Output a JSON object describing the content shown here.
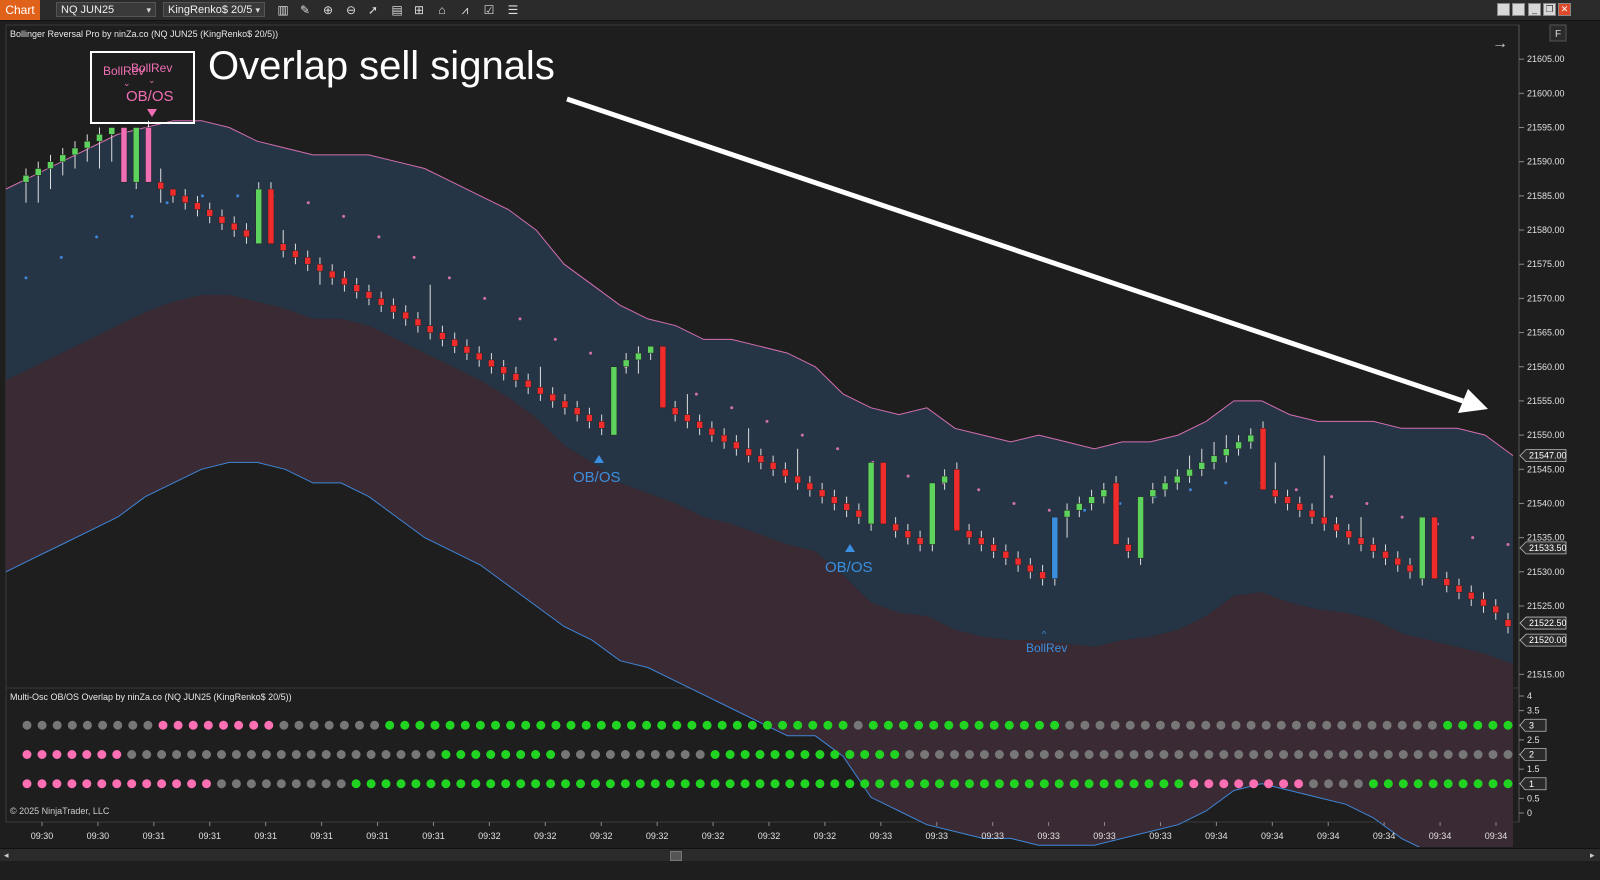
{
  "toolbar": {
    "chart_tab": "Chart",
    "instrument": "NQ JUN25",
    "bar_type": "KingRenko$ 20/5",
    "icons": [
      "bars-icon",
      "draw-icon",
      "zoom-in-icon",
      "zoom-out-icon",
      "pointer-icon",
      "data-box-icon",
      "templates-icon",
      "strategies-icon",
      "indicators-icon",
      "properties-icon",
      "list-icon"
    ]
  },
  "price_panel": {
    "title": "Bollinger Reversal Pro by ninZa.co (NQ JUN25 (KingRenko$ 20/5))",
    "annotation": "Overlap sell signals",
    "signal_labels": {
      "bollrev_a": "BollRev",
      "bollrev_b": "BollRev",
      "obos_top": "OB/OS",
      "obos_1": "OB/OS",
      "obos_2": "OB/OS",
      "bollrev_bottom": "BollRev"
    },
    "axis_ticks": [
      "21605.00",
      "21600.00",
      "21595.00",
      "21590.00",
      "21585.00",
      "21580.00",
      "21575.00",
      "21570.00",
      "21565.00",
      "21560.00",
      "21555.00",
      "21550.00",
      "21545.00",
      "21540.00",
      "21535.00",
      "21530.00",
      "21525.00",
      "21520.00",
      "21515.00"
    ],
    "price_tags": [
      {
        "value": "21547.00",
        "color": "#2b2b2b"
      },
      {
        "value": "21533.50",
        "color": "#2b2b2b"
      },
      {
        "value": "21522.50",
        "color": "#2b2b2b"
      },
      {
        "value": "21520.00",
        "color": "#2b2b2b"
      }
    ],
    "panel_button": "F"
  },
  "oscillator_panel": {
    "title": "Multi-Osc OB/OS Overlap by ninZa.co (NQ JUN25 (KingRenko$ 20/5))",
    "axis_ticks": [
      "4",
      "3.5",
      "3",
      "2.5",
      "2",
      "1.5",
      "1",
      "0.5",
      "0"
    ],
    "row_tags": [
      "3",
      "2",
      "1"
    ]
  },
  "copyright": "© 2025 NinjaTrader, LLC",
  "time_axis": [
    "09:30",
    "09:30",
    "09:31",
    "09:31",
    "09:31",
    "09:31",
    "09:31",
    "09:31",
    "09:32",
    "09:32",
    "09:32",
    "09:32",
    "09:32",
    "09:32",
    "09:32",
    "09:33",
    "09:33",
    "09:33",
    "09:33",
    "09:33",
    "09:33",
    "09:34",
    "09:34",
    "09:34",
    "09:34",
    "09:34",
    "09:34"
  ],
  "colors": {
    "background": "#1e1e1e",
    "upper_band_fill": "#263545",
    "lower_band_fill": "#3a2a33",
    "upper_line": "#d36fb0",
    "lower_line": "#3f86d8",
    "bull": "#5dd35d",
    "bear": "#ef2b2b",
    "signal_pink": "#f06fb4",
    "signal_blue": "#3b8fe0",
    "dot_green": "#22d422",
    "dot_gray": "#777777",
    "dot_pink": "#ff6fb4"
  },
  "chart_data": {
    "type": "candlestick",
    "ylim": [
      21513,
      21610
    ],
    "bars": [
      {
        "o": 21587,
        "c": 21588,
        "h": 21589,
        "l": 21584,
        "k": "u"
      },
      {
        "o": 21588,
        "c": 21589,
        "h": 21590,
        "l": 21584,
        "k": "u"
      },
      {
        "o": 21589,
        "c": 21590,
        "h": 21591,
        "l": 21586,
        "k": "u"
      },
      {
        "o": 21590,
        "c": 21591,
        "h": 21592,
        "l": 21588,
        "k": "u"
      },
      {
        "o": 21591,
        "c": 21592,
        "h": 21593,
        "l": 21589,
        "k": "u"
      },
      {
        "o": 21592,
        "c": 21593,
        "h": 21594,
        "l": 21590,
        "k": "u"
      },
      {
        "o": 21593,
        "c": 21594,
        "h": 21595,
        "l": 21589,
        "k": "u"
      },
      {
        "o": 21594,
        "c": 21595,
        "h": 21595,
        "l": 21590,
        "k": "u"
      },
      {
        "o": 21595,
        "c": 21587,
        "h": 21595,
        "l": 21587,
        "k": "sp"
      },
      {
        "o": 21587,
        "c": 21595,
        "h": 21595,
        "l": 21586,
        "k": "u"
      },
      {
        "o": 21595,
        "c": 21587,
        "h": 21596,
        "l": 21587,
        "k": "sp"
      },
      {
        "o": 21587,
        "c": 21586,
        "h": 21589,
        "l": 21584,
        "k": "d"
      },
      {
        "o": 21586,
        "c": 21585,
        "h": 21586,
        "l": 21584,
        "k": "d"
      },
      {
        "o": 21585,
        "c": 21584,
        "h": 21586,
        "l": 21583,
        "k": "d"
      },
      {
        "o": 21584,
        "c": 21583,
        "h": 21585,
        "l": 21582,
        "k": "d"
      },
      {
        "o": 21583,
        "c": 21582,
        "h": 21584,
        "l": 21581,
        "k": "d"
      },
      {
        "o": 21582,
        "c": 21581,
        "h": 21583,
        "l": 21580,
        "k": "d"
      },
      {
        "o": 21581,
        "c": 21580,
        "h": 21582,
        "l": 21579,
        "k": "d"
      },
      {
        "o": 21580,
        "c": 21579,
        "h": 21581,
        "l": 21578,
        "k": "d"
      },
      {
        "o": 21578,
        "c": 21586,
        "h": 21587,
        "l": 21578,
        "k": "u"
      },
      {
        "o": 21586,
        "c": 21578,
        "h": 21587,
        "l": 21578,
        "k": "d"
      },
      {
        "o": 21578,
        "c": 21577,
        "h": 21580,
        "l": 21576,
        "k": "d"
      },
      {
        "o": 21577,
        "c": 21576,
        "h": 21578,
        "l": 21575,
        "k": "d"
      },
      {
        "o": 21576,
        "c": 21575,
        "h": 21577,
        "l": 21574,
        "k": "d"
      },
      {
        "o": 21575,
        "c": 21574,
        "h": 21576,
        "l": 21572,
        "k": "d"
      },
      {
        "o": 21574,
        "c": 21573,
        "h": 21575,
        "l": 21572,
        "k": "d"
      },
      {
        "o": 21573,
        "c": 21572,
        "h": 21574,
        "l": 21571,
        "k": "d"
      },
      {
        "o": 21572,
        "c": 21571,
        "h": 21573,
        "l": 21570,
        "k": "d"
      },
      {
        "o": 21571,
        "c": 21570,
        "h": 21572,
        "l": 21569,
        "k": "d"
      },
      {
        "o": 21570,
        "c": 21569,
        "h": 21571,
        "l": 21568,
        "k": "d"
      },
      {
        "o": 21569,
        "c": 21568,
        "h": 21570,
        "l": 21567,
        "k": "d"
      },
      {
        "o": 21568,
        "c": 21567,
        "h": 21569,
        "l": 21566,
        "k": "d"
      },
      {
        "o": 21567,
        "c": 21566,
        "h": 21568,
        "l": 21565,
        "k": "d"
      },
      {
        "o": 21566,
        "c": 21565,
        "h": 21572,
        "l": 21564,
        "k": "d"
      },
      {
        "o": 21565,
        "c": 21564,
        "h": 21566,
        "l": 21563,
        "k": "d"
      },
      {
        "o": 21564,
        "c": 21563,
        "h": 21565,
        "l": 21562,
        "k": "d"
      },
      {
        "o": 21563,
        "c": 21562,
        "h": 21564,
        "l": 21561,
        "k": "d"
      },
      {
        "o": 21562,
        "c": 21561,
        "h": 21563,
        "l": 21560,
        "k": "d"
      },
      {
        "o": 21561,
        "c": 21560,
        "h": 21562,
        "l": 21559,
        "k": "d"
      },
      {
        "o": 21560,
        "c": 21559,
        "h": 21561,
        "l": 21558,
        "k": "d"
      },
      {
        "o": 21559,
        "c": 21558,
        "h": 21560,
        "l": 21557,
        "k": "d"
      },
      {
        "o": 21558,
        "c": 21557,
        "h": 21559,
        "l": 21556,
        "k": "d"
      },
      {
        "o": 21557,
        "c": 21556,
        "h": 21560,
        "l": 21555,
        "k": "d"
      },
      {
        "o": 21556,
        "c": 21555,
        "h": 21557,
        "l": 21554,
        "k": "d"
      },
      {
        "o": 21555,
        "c": 21554,
        "h": 21556,
        "l": 21553,
        "k": "d"
      },
      {
        "o": 21554,
        "c": 21553,
        "h": 21555,
        "l": 21552,
        "k": "d"
      },
      {
        "o": 21553,
        "c": 21552,
        "h": 21554,
        "l": 21551,
        "k": "d"
      },
      {
        "o": 21552,
        "c": 21551,
        "h": 21553,
        "l": 21550,
        "k": "d"
      },
      {
        "o": 21550,
        "c": 21560,
        "h": 21560,
        "l": 21550,
        "k": "u"
      },
      {
        "o": 21560,
        "c": 21561,
        "h": 21562,
        "l": 21559,
        "k": "u"
      },
      {
        "o": 21561,
        "c": 21562,
        "h": 21563,
        "l": 21559,
        "k": "u"
      },
      {
        "o": 21562,
        "c": 21563,
        "h": 21563,
        "l": 21561,
        "k": "u"
      },
      {
        "o": 21563,
        "c": 21554,
        "h": 21563,
        "l": 21554,
        "k": "d"
      },
      {
        "o": 21554,
        "c": 21553,
        "h": 21555,
        "l": 21552,
        "k": "d"
      },
      {
        "o": 21553,
        "c": 21552,
        "h": 21556,
        "l": 21551,
        "k": "d"
      },
      {
        "o": 21552,
        "c": 21551,
        "h": 21553,
        "l": 21550,
        "k": "d"
      },
      {
        "o": 21551,
        "c": 21550,
        "h": 21552,
        "l": 21549,
        "k": "d"
      },
      {
        "o": 21550,
        "c": 21549,
        "h": 21551,
        "l": 21548,
        "k": "d"
      },
      {
        "o": 21549,
        "c": 21548,
        "h": 21550,
        "l": 21547,
        "k": "d"
      },
      {
        "o": 21548,
        "c": 21547,
        "h": 21551,
        "l": 21546,
        "k": "d"
      },
      {
        "o": 21547,
        "c": 21546,
        "h": 21548,
        "l": 21545,
        "k": "d"
      },
      {
        "o": 21546,
        "c": 21545,
        "h": 21547,
        "l": 21544,
        "k": "d"
      },
      {
        "o": 21545,
        "c": 21544,
        "h": 21546,
        "l": 21543,
        "k": "d"
      },
      {
        "o": 21544,
        "c": 21543,
        "h": 21548,
        "l": 21542,
        "k": "d"
      },
      {
        "o": 21543,
        "c": 21542,
        "h": 21544,
        "l": 21541,
        "k": "d"
      },
      {
        "o": 21542,
        "c": 21541,
        "h": 21543,
        "l": 21540,
        "k": "d"
      },
      {
        "o": 21541,
        "c": 21540,
        "h": 21542,
        "l": 21539,
        "k": "d"
      },
      {
        "o": 21540,
        "c": 21539,
        "h": 21541,
        "l": 21538,
        "k": "d"
      },
      {
        "o": 21539,
        "c": 21538,
        "h": 21540,
        "l": 21537,
        "k": "d"
      },
      {
        "o": 21537,
        "c": 21546,
        "h": 21546,
        "l": 21536,
        "k": "u"
      },
      {
        "o": 21546,
        "c": 21537,
        "h": 21546,
        "l": 21537,
        "k": "d"
      },
      {
        "o": 21537,
        "c": 21536,
        "h": 21538,
        "l": 21535,
        "k": "d"
      },
      {
        "o": 21536,
        "c": 21535,
        "h": 21537,
        "l": 21534,
        "k": "d"
      },
      {
        "o": 21535,
        "c": 21534,
        "h": 21536,
        "l": 21533,
        "k": "d"
      },
      {
        "o": 21534,
        "c": 21543,
        "h": 21543,
        "l": 21533,
        "k": "u"
      },
      {
        "o": 21543,
        "c": 21544,
        "h": 21545,
        "l": 21542,
        "k": "u"
      },
      {
        "o": 21545,
        "c": 21536,
        "h": 21546,
        "l": 21536,
        "k": "d"
      },
      {
        "o": 21536,
        "c": 21535,
        "h": 21537,
        "l": 21534,
        "k": "d"
      },
      {
        "o": 21535,
        "c": 21534,
        "h": 21536,
        "l": 21533,
        "k": "d"
      },
      {
        "o": 21534,
        "c": 21533,
        "h": 21535,
        "l": 21532,
        "k": "d"
      },
      {
        "o": 21533,
        "c": 21532,
        "h": 21534,
        "l": 21531,
        "k": "d"
      },
      {
        "o": 21532,
        "c": 21531,
        "h": 21533,
        "l": 21530,
        "k": "d"
      },
      {
        "o": 21531,
        "c": 21530,
        "h": 21532,
        "l": 21529,
        "k": "d"
      },
      {
        "o": 21530,
        "c": 21529,
        "h": 21531,
        "l": 21528,
        "k": "d"
      },
      {
        "o": 21529,
        "c": 21538,
        "h": 21538,
        "l": 21528,
        "k": "ub"
      },
      {
        "o": 21538,
        "c": 21539,
        "h": 21540,
        "l": 21535,
        "k": "u"
      },
      {
        "o": 21539,
        "c": 21540,
        "h": 21541,
        "l": 21538,
        "k": "u"
      },
      {
        "o": 21540,
        "c": 21541,
        "h": 21542,
        "l": 21539,
        "k": "u"
      },
      {
        "o": 21541,
        "c": 21542,
        "h": 21543,
        "l": 21540,
        "k": "u"
      },
      {
        "o": 21543,
        "c": 21534,
        "h": 21544,
        "l": 21534,
        "k": "d"
      },
      {
        "o": 21534,
        "c": 21533,
        "h": 21535,
        "l": 21532,
        "k": "d"
      },
      {
        "o": 21532,
        "c": 21541,
        "h": 21541,
        "l": 21531,
        "k": "u"
      },
      {
        "o": 21541,
        "c": 21542,
        "h": 21543,
        "l": 21540,
        "k": "u"
      },
      {
        "o": 21542,
        "c": 21543,
        "h": 21544,
        "l": 21541,
        "k": "u"
      },
      {
        "o": 21543,
        "c": 21544,
        "h": 21545,
        "l": 21542,
        "k": "u"
      },
      {
        "o": 21544,
        "c": 21545,
        "h": 21547,
        "l": 21543,
        "k": "u"
      },
      {
        "o": 21545,
        "c": 21546,
        "h": 21548,
        "l": 21544,
        "k": "u"
      },
      {
        "o": 21546,
        "c": 21547,
        "h": 21549,
        "l": 21545,
        "k": "u"
      },
      {
        "o": 21547,
        "c": 21548,
        "h": 21550,
        "l": 21546,
        "k": "u"
      },
      {
        "o": 21548,
        "c": 21549,
        "h": 21550,
        "l": 21547,
        "k": "u"
      },
      {
        "o": 21549,
        "c": 21550,
        "h": 21551,
        "l": 21548,
        "k": "u"
      },
      {
        "o": 21551,
        "c": 21542,
        "h": 21552,
        "l": 21542,
        "k": "d"
      },
      {
        "o": 21542,
        "c": 21541,
        "h": 21546,
        "l": 21540,
        "k": "d"
      },
      {
        "o": 21541,
        "c": 21540,
        "h": 21542,
        "l": 21539,
        "k": "d"
      },
      {
        "o": 21540,
        "c": 21539,
        "h": 21541,
        "l": 21538,
        "k": "d"
      },
      {
        "o": 21539,
        "c": 21538,
        "h": 21540,
        "l": 21537,
        "k": "d"
      },
      {
        "o": 21538,
        "c": 21537,
        "h": 21547,
        "l": 21536,
        "k": "d"
      },
      {
        "o": 21537,
        "c": 21536,
        "h": 21538,
        "l": 21535,
        "k": "d"
      },
      {
        "o": 21536,
        "c": 21535,
        "h": 21537,
        "l": 21534,
        "k": "d"
      },
      {
        "o": 21535,
        "c": 21534,
        "h": 21538,
        "l": 21533,
        "k": "d"
      },
      {
        "o": 21534,
        "c": 21533,
        "h": 21535,
        "l": 21532,
        "k": "d"
      },
      {
        "o": 21533,
        "c": 21532,
        "h": 21534,
        "l": 21531,
        "k": "d"
      },
      {
        "o": 21532,
        "c": 21531,
        "h": 21533,
        "l": 21530,
        "k": "d"
      },
      {
        "o": 21531,
        "c": 21530,
        "h": 21532,
        "l": 21529,
        "k": "d"
      },
      {
        "o": 21529,
        "c": 21538,
        "h": 21538,
        "l": 21528,
        "k": "u"
      },
      {
        "o": 21538,
        "c": 21529,
        "h": 21538,
        "l": 21529,
        "k": "d"
      },
      {
        "o": 21529,
        "c": 21528,
        "h": 21530,
        "l": 21527,
        "k": "d"
      },
      {
        "o": 21528,
        "c": 21527,
        "h": 21529,
        "l": 21526,
        "k": "d"
      },
      {
        "o": 21527,
        "c": 21526,
        "h": 21528,
        "l": 21525,
        "k": "d"
      },
      {
        "o": 21526,
        "c": 21525,
        "h": 21527,
        "l": 21524,
        "k": "d"
      },
      {
        "o": 21525,
        "c": 21524,
        "h": 21526,
        "l": 21523,
        "k": "d"
      },
      {
        "o": 21523,
        "c": 21522,
        "h": 21524,
        "l": 21521,
        "k": "d"
      }
    ],
    "upper_band": [
      21586,
      21588,
      21590,
      21592,
      21594,
      21595,
      21596,
      21596,
      21595,
      21593,
      21592,
      21591,
      21591,
      21591,
      21590,
      21589,
      21587,
      21585,
      21583,
      21580,
      21575,
      21572,
      21569,
      21567,
      21566,
      21564,
      21564,
      21563,
      21562,
      21560,
      21556,
      21554,
      21553,
      21554,
      21551,
      21550,
      21549,
      21550,
      21549,
      21548,
      21549,
      21549,
      21550,
      21552,
      21555,
      21555,
      21553,
      21552,
      21552,
      21552,
      21551,
      21551,
      21551,
      21550,
      21547
    ],
    "lower_band": [
      21530,
      21532,
      21534,
      21536,
      21538,
      21541,
      21543,
      21545,
      21546,
      21546,
      21545,
      21543,
      21543,
      21541,
      21538,
      21535,
      21533,
      21531,
      21528,
      21525,
      21522,
      21520,
      21517,
      21516,
      21514,
      21512,
      21510,
      21508,
      21506,
      21506,
      21503,
      21497,
      21495,
      21493,
      21492,
      21491,
      21491,
      21490,
      21490,
      21490,
      21491,
      21492,
      21493,
      21495,
      21498,
      21499,
      21498,
      21497,
      21496,
      21494,
      21491,
      21489,
      21487,
      21486,
      21486
    ],
    "mid_line": [
      21573,
      21576,
      21579,
      21582,
      21584,
      21585,
      21585,
      21585,
      21584,
      21582,
      21579,
      21576,
      21573,
      21570,
      21567,
      21564,
      21562,
      21560,
      21558,
      21556,
      21554,
      21552,
      21550,
      21548,
      21546,
      21544,
      21543,
      21542,
      21540,
      21539,
      21539,
      21540,
      21541,
      21542,
      21543,
      21543,
      21542,
      21541,
      21540,
      21538,
      21537,
      21535,
      21534
    ],
    "osc_rows": {
      "row3": "gggggggggppppppppgggggggGGGGGGGGGGGGGGGGGGGGGGGGGGGGGGGgGGGGGGGGGGGGGgggggggggggggggggggggggggGGGGG",
      "row2": "pppppppgggggggggggggggggggggGGGGGGGGggggggggggGGGGGGGGGGGGGggggggggggggggggggggggggggggggggggggggggg",
      "row1": "pppppppppppppgggggggggGGGGGGGGGGGGGGGGGGGGGGGGGGGGGGGGGGGGGGGGGGGGGGGGGGGGGGGGppppppppggggGGGGGGGGGG"
    }
  }
}
